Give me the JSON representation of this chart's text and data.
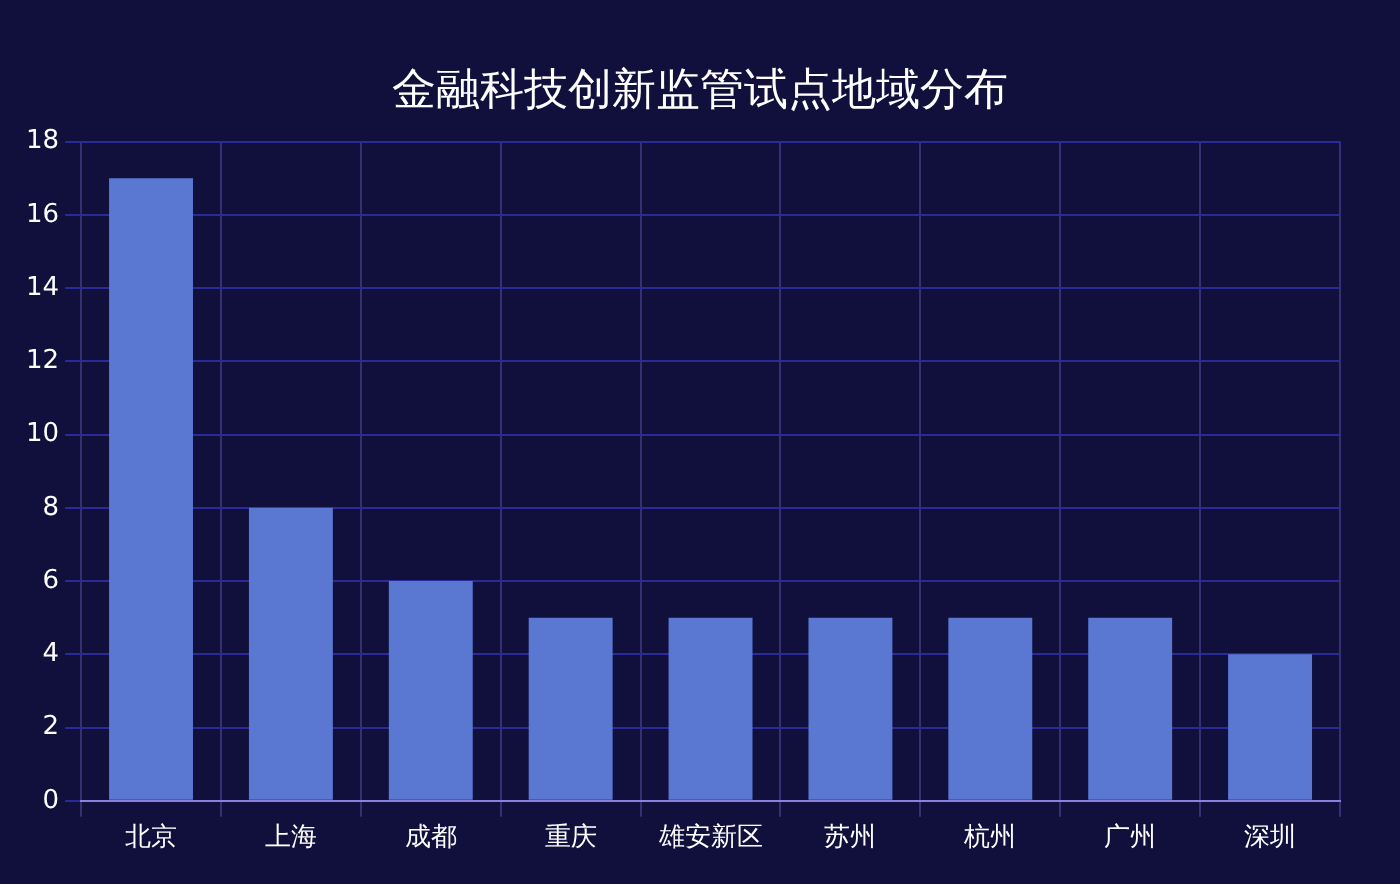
{
  "chart_data": {
    "type": "bar",
    "title": "金融科技创新监管试点地域分布",
    "categories": [
      "北京",
      "上海",
      "成都",
      "重庆",
      "雄安新区",
      "苏州",
      "杭州",
      "广州",
      "深圳"
    ],
    "values": [
      17,
      8,
      6,
      5,
      5,
      5,
      5,
      5,
      4
    ],
    "color": "#5a78d2",
    "ylim": [
      0,
      18
    ],
    "yticks": [
      0,
      2,
      4,
      6,
      8,
      10,
      12,
      14,
      16,
      18
    ],
    "grid": true
  }
}
